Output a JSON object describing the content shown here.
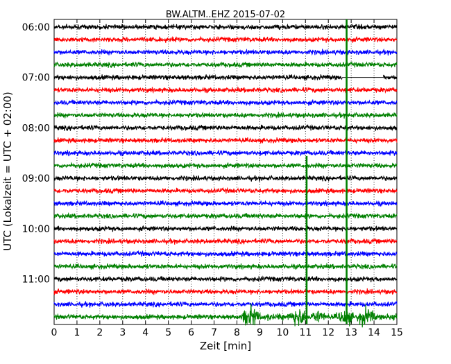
{
  "chart_data": {
    "type": "line",
    "title": "BW.ALTM..EHZ 2015-07-02",
    "xlabel": "Zeit  [min]",
    "ylabel": "UTC (Lokalzeit = UTC + 02:00)",
    "xlim": [
      0,
      15
    ],
    "x_ticks": [
      "0",
      "1",
      "2",
      "3",
      "4",
      "5",
      "6",
      "7",
      "8",
      "9",
      "10",
      "11",
      "12",
      "13",
      "14",
      "15"
    ],
    "y_tick_labels": [
      "06:00",
      "07:00",
      "08:00",
      "09:00",
      "10:00",
      "11:00"
    ],
    "line_count": 24,
    "line_start": "06:00",
    "line_interval_min": 15,
    "trace_colors": [
      "#000000",
      "#ff0000",
      "#0000ff",
      "#008000"
    ],
    "grid": true,
    "events": [
      {
        "type": "spike",
        "minute": 12.8,
        "from_line": 0,
        "to_line": 23,
        "color": "#008000"
      },
      {
        "type": "spike",
        "minute": 11.05,
        "from_line": 11,
        "to_line": 23,
        "color": "#008000"
      },
      {
        "type": "gap",
        "line": 4,
        "from_min": 12.6,
        "to_min": 14.4
      },
      {
        "type": "burst",
        "line": 23,
        "from_min": 8.2,
        "to_min": 15.0
      }
    ]
  }
}
